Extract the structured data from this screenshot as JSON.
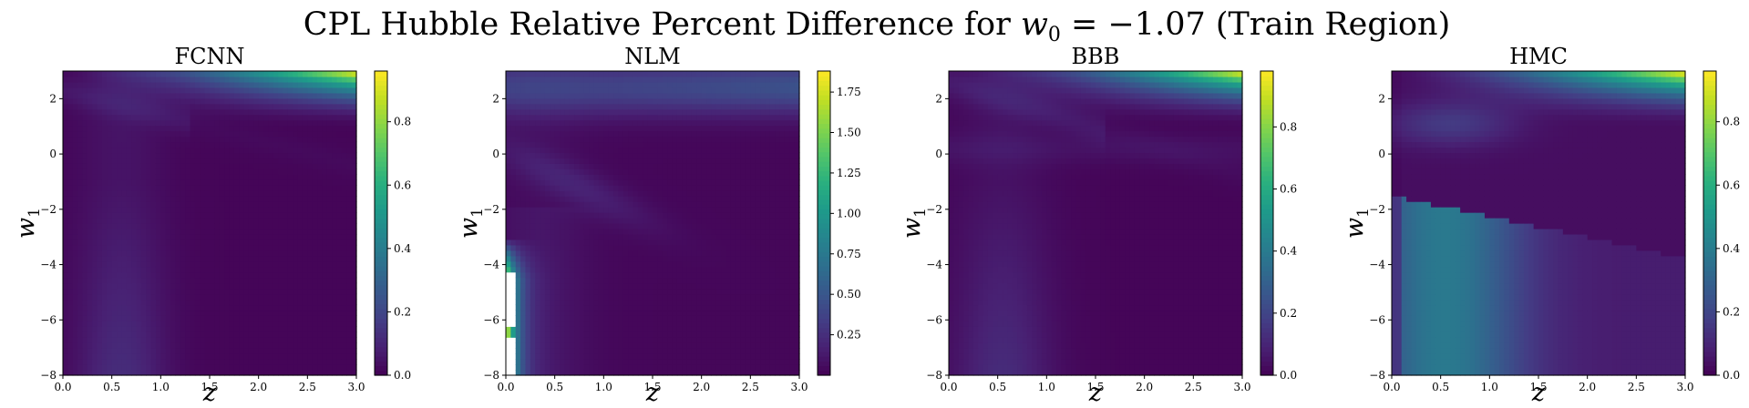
{
  "figure": {
    "title_prefix": "CPL Hubble Relative Percent Difference for ",
    "title_var": "w",
    "title_sub": "0",
    "title_value": " = −1.07 (Train Region)"
  },
  "chart_data": [
    {
      "type": "heatmap",
      "title": "FCNN",
      "xlabel": "z",
      "ylabel": "w",
      "ylabel_sub": "1",
      "xlim": [
        0,
        3
      ],
      "ylim": [
        -8,
        3
      ],
      "x_ticks": [
        "0.0",
        "0.5",
        "1.0",
        "1.5",
        "2.0",
        "2.5",
        "3.0"
      ],
      "y_ticks": [
        "−8",
        "−6",
        "−4",
        "−2",
        "0",
        "2"
      ],
      "colormap": "viridis",
      "colorbar_range": [
        0,
        0.96
      ],
      "colorbar_ticks": [
        "0.0",
        "0.2",
        "0.4",
        "0.6",
        "0.8"
      ],
      "features": {
        "top_right_peak": 0.96,
        "vertical_band_center_z": 0.6,
        "vertical_band_level": 0.1,
        "secondary_arc_level": 0.04
      }
    },
    {
      "type": "heatmap",
      "title": "NLM",
      "xlabel": "z",
      "ylabel": "w",
      "ylabel_sub": "1",
      "xlim": [
        0,
        3
      ],
      "ylim": [
        -8,
        3
      ],
      "x_ticks": [
        "0.0",
        "0.5",
        "1.0",
        "1.5",
        "2.0",
        "2.5",
        "3.0"
      ],
      "y_ticks": [
        "−8",
        "−6",
        "−4",
        "−2",
        "0",
        "2"
      ],
      "colormap": "viridis",
      "colorbar_range": [
        0.0,
        1.88
      ],
      "colorbar_ticks": [
        "0.25",
        "0.50",
        "0.75",
        "1.00",
        "1.25",
        "1.50",
        "1.75"
      ],
      "features": {
        "low_z_edge_peak": 1.88,
        "low_z_edge_below_w1": -3.0,
        "blank_region_z_max": 0.12,
        "blank_region_w1": [
          -8,
          -4.3
        ],
        "top_band_level": 0.35
      }
    },
    {
      "type": "heatmap",
      "title": "BBB",
      "xlabel": "z",
      "ylabel": "w",
      "ylabel_sub": "1",
      "xlim": [
        0,
        3
      ],
      "ylim": [
        -8,
        3
      ],
      "x_ticks": [
        "0.0",
        "0.5",
        "1.0",
        "1.5",
        "2.0",
        "2.5",
        "3.0"
      ],
      "y_ticks": [
        "−8",
        "−6",
        "−4",
        "−2",
        "0",
        "2"
      ],
      "colormap": "viridis",
      "colorbar_range": [
        0,
        0.98
      ],
      "colorbar_ticks": [
        "0.0",
        "0.2",
        "0.4",
        "0.6",
        "0.8"
      ],
      "features": {
        "top_right_peak": 0.98,
        "vertical_band_center_z": 0.55,
        "vertical_band_level": 0.1
      }
    },
    {
      "type": "heatmap",
      "title": "HMC",
      "xlabel": "z",
      "ylabel": "w",
      "ylabel_sub": "1",
      "xlim": [
        0,
        3
      ],
      "ylim": [
        -8,
        3
      ],
      "x_ticks": [
        "0.0",
        "0.5",
        "1.0",
        "1.5",
        "2.0",
        "2.5",
        "3.0"
      ],
      "y_ticks": [
        "−8",
        "−6",
        "−4",
        "−2",
        "0",
        "2"
      ],
      "colormap": "viridis",
      "colorbar_range": [
        0,
        0.96
      ],
      "colorbar_ticks": [
        "0.0",
        "0.2",
        "0.4",
        "0.6",
        "0.8"
      ],
      "features": {
        "top_right_peak": 0.96,
        "lower_region_level": 0.3,
        "upper_blob_level": 0.12
      }
    }
  ]
}
